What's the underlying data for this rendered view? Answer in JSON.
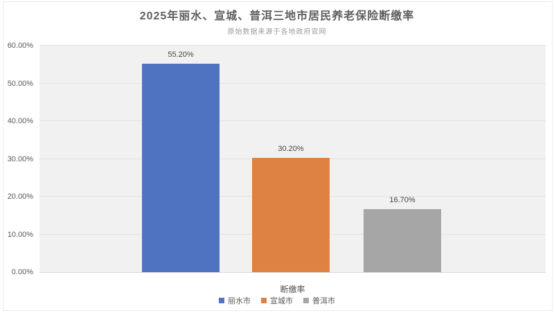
{
  "title": "2025年丽水、宣城、普洱三地市居民养老保险断缴率",
  "subtitle": "原始数据来源于各地政府官网",
  "chart_data": {
    "type": "bar",
    "title": "2025年丽水、宣城、普洱三地市居民养老保险断缴率",
    "subtitle": "原始数据来源于各地政府官网",
    "categories": [
      "断缴率"
    ],
    "xlabel": "断缴率",
    "ylabel": "",
    "ylim": [
      0,
      60
    ],
    "y_tick_values": [
      0,
      10,
      20,
      30,
      40,
      50,
      60
    ],
    "y_tick_labels": [
      "0.00%",
      "10.00%",
      "20.00%",
      "30.00%",
      "40.00%",
      "50.00%",
      "60.00%"
    ],
    "grid": true,
    "legend_position": "bottom",
    "series": [
      {
        "name": "丽水市",
        "values": [
          55.2
        ],
        "data_label": "55.20%",
        "color": "#4f73c0"
      },
      {
        "name": "宣城市",
        "values": [
          30.2
        ],
        "data_label": "30.20%",
        "color": "#dd8243"
      },
      {
        "name": "普洱市",
        "values": [
          16.7
        ],
        "data_label": "16.70%",
        "color": "#a6a6a6"
      }
    ]
  },
  "colors": {
    "plot_background": "#f1f1f1",
    "gridline": "#e2e2e2",
    "axis_line": "#d8d8d8",
    "title_text": "#5e5e5e",
    "subtitle_text": "#9c9c9c",
    "axis_text": "#595959",
    "data_label_text": "#454545",
    "bar_blue": "#4f73c0",
    "bar_orange": "#dd8243",
    "bar_gray": "#a6a6a6"
  }
}
